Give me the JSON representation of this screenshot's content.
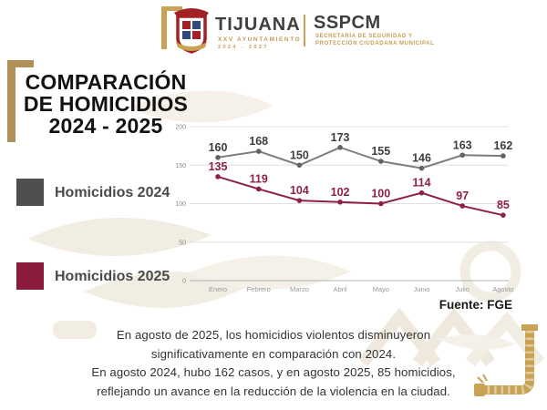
{
  "header": {
    "city": "TIJUANA",
    "city_sub1": "XXV AYUNTAMIENTO",
    "city_sub2": "2024 - 2027",
    "agency": "SSPCM",
    "agency_sub1": "SECRETARÍA DE SEGURIDAD Y",
    "agency_sub2": "PROTECCIÓN CIUDADANA MUNICIPAL"
  },
  "title": {
    "line1": "COMPARACIÓN",
    "line2": "DE HOMICIDIOS",
    "line3": "2024 - 2025"
  },
  "legend": [
    {
      "label": "Homicidios 2024",
      "color": "#4f4f4f"
    },
    {
      "label": "Homicidios 2025",
      "color": "#8a1b3d"
    }
  ],
  "source": "Fuente: FGE",
  "summary": {
    "lines": [
      "En agosto de 2025, los homicidios violentos disminuyeron",
      "significativamente en comparación con 2024.",
      "En agosto 2024, hubo 162 casos, y en agosto 2025, 85 homicidios,",
      "reflejando un avance en la reducción de la violencia en la ciudad."
    ]
  },
  "chart_data": {
    "type": "line",
    "categories": [
      "Enero",
      "Febrero",
      "Marzo",
      "Abril",
      "Mayo",
      "Junio",
      "Julio",
      "Agosto"
    ],
    "series": [
      {
        "name": "Homicidios 2024",
        "color": "#7d7d7d",
        "marker_color": "#636363",
        "label_color": "#3d3d3d",
        "values": [
          160,
          168,
          150,
          173,
          155,
          146,
          163,
          162
        ]
      },
      {
        "name": "Homicidios 2025",
        "color": "#8e2143",
        "marker_color": "#8e2143",
        "label_color": "#8e2143",
        "values": [
          135,
          119,
          104,
          102,
          100,
          114,
          97,
          85
        ]
      }
    ],
    "ylim": [
      0,
      200
    ],
    "yticks": [
      0,
      50,
      100,
      150,
      200
    ],
    "grid": true,
    "legend_position": "left",
    "title": "COMPARACIÓN DE HOMICIDIOS 2024 - 2025",
    "xlabel": "",
    "ylabel": "",
    "source": "Fuente: FGE"
  },
  "colors": {
    "accent_gold": "#c9a254",
    "bracket_gold": "#b19058",
    "watermark_beige": "#f2ede3",
    "grid_line": "#e0e0e0",
    "axis_line": "#b0b0b0",
    "tick_text": "#8a8a8a"
  }
}
